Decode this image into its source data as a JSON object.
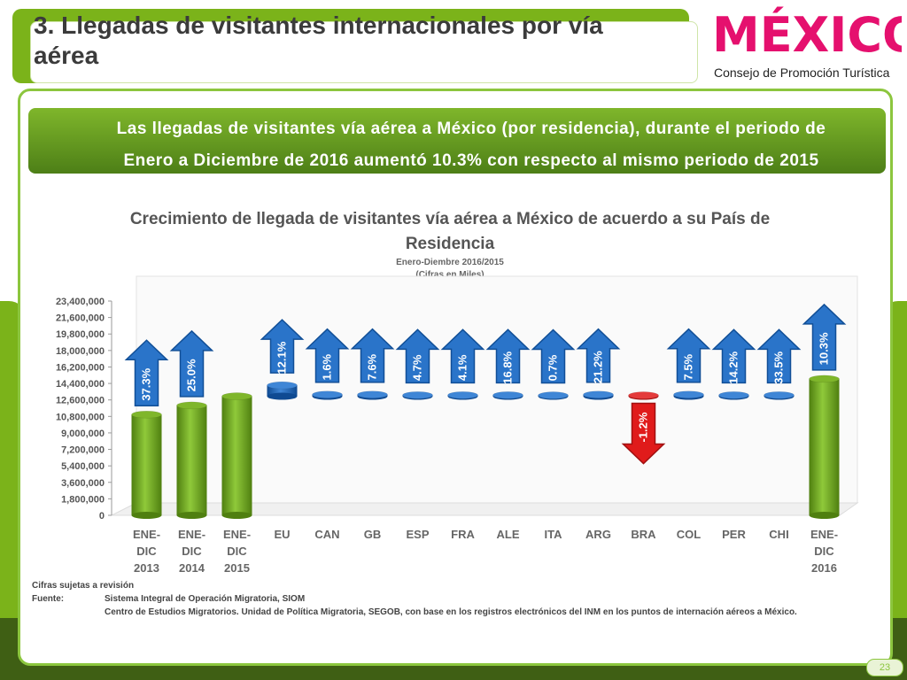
{
  "slide": {
    "title": "3. Llegadas de visitantes internacionales por vía aérea",
    "page_number": "23"
  },
  "logo": {
    "word": "MÉXICO",
    "subtitle": "Consejo de Promoción Turística"
  },
  "banner": {
    "line1": "Las llegadas de visitantes vía aérea a México (por residencia), durante el periodo de",
    "line2": "Enero a Diciembre de 2016 aumentó 10.3% con respecto al mismo periodo de 2015"
  },
  "chart_data": {
    "type": "bar",
    "title": "Crecimiento de llegada de visitantes vía aérea a México de acuerdo a su País de Residencia",
    "subtitle_line1": "Enero-Diembre 2016/2015",
    "subtitle_line2": "(Cifras en Miles)",
    "ylim": [
      0,
      23400000
    ],
    "yticks": [
      "0",
      "1,800,000",
      "3,600,000",
      "5,400,000",
      "7,200,000",
      "9,000,000",
      "10,800,000",
      "12,600,000",
      "14,400,000",
      "16,200,000",
      "18,000,000",
      "19,800,000",
      "21,600,000",
      "23,400,000"
    ],
    "categories": [
      [
        "ENE-",
        "DIC",
        "2013"
      ],
      [
        "ENE-",
        "DIC",
        "2014"
      ],
      [
        "ENE-",
        "DIC",
        "2015"
      ],
      [
        "EU"
      ],
      [
        "CAN"
      ],
      [
        "GB"
      ],
      [
        "ESP"
      ],
      [
        "FRA"
      ],
      [
        "ALE"
      ],
      [
        "ITA"
      ],
      [
        "ARG"
      ],
      [
        "BRA"
      ],
      [
        "COL"
      ],
      [
        "PER"
      ],
      [
        "CHI"
      ],
      [
        "ENE-",
        "DIC",
        "2016"
      ]
    ],
    "bars": [
      {
        "kind": "total",
        "low": 0,
        "high": 11000000,
        "growth": "37.3%"
      },
      {
        "kind": "total",
        "low": 0,
        "high": 12000000,
        "growth": "25.0%"
      },
      {
        "kind": "total",
        "low": 0,
        "high": 13000000,
        "growth": ""
      },
      {
        "kind": "delta",
        "low": 13000000,
        "high": 14200000,
        "growth": "12.1%"
      },
      {
        "kind": "delta",
        "low": 13000000,
        "high": 13180000,
        "growth": "1.6%"
      },
      {
        "kind": "delta",
        "low": 13000000,
        "high": 13180000,
        "growth": "7.6%"
      },
      {
        "kind": "delta",
        "low": 13000000,
        "high": 13120000,
        "growth": "4.7%"
      },
      {
        "kind": "delta",
        "low": 13000000,
        "high": 13120000,
        "growth": "4.1%"
      },
      {
        "kind": "delta",
        "low": 13000000,
        "high": 13120000,
        "growth": "16.8%"
      },
      {
        "kind": "delta",
        "low": 13000000,
        "high": 13100000,
        "growth": "0.7%"
      },
      {
        "kind": "delta",
        "low": 13000000,
        "high": 13180000,
        "growth": "21.2%"
      },
      {
        "kind": "negative",
        "low": 13000000,
        "high": 13100000,
        "growth": "-1.2%"
      },
      {
        "kind": "delta",
        "low": 13000000,
        "high": 13180000,
        "growth": "7.5%"
      },
      {
        "kind": "delta",
        "low": 13000000,
        "high": 13120000,
        "growth": "14.2%"
      },
      {
        "kind": "delta",
        "low": 13000000,
        "high": 13120000,
        "growth": "33.5%"
      },
      {
        "kind": "total",
        "low": 0,
        "high": 14900000,
        "growth": "10.3%"
      }
    ],
    "colors": {
      "total": "#6fa21a",
      "delta": "#1f63b5",
      "negative": "#d11414",
      "arrow_up": "#2a74c9",
      "arrow_down": "#e01b1b"
    }
  },
  "notes": {
    "revision": "Cifras sujetas a revisión",
    "source_label": "Fuente:",
    "source_1": "Sistema Integral de Operación Migratoria, SIOM",
    "source_2": "Centro de Estudios Migratorios. Unidad de Política Migratoria, SEGOB, con base en los registros electrónicos del INM en los puntos de internación aéreos a México."
  }
}
